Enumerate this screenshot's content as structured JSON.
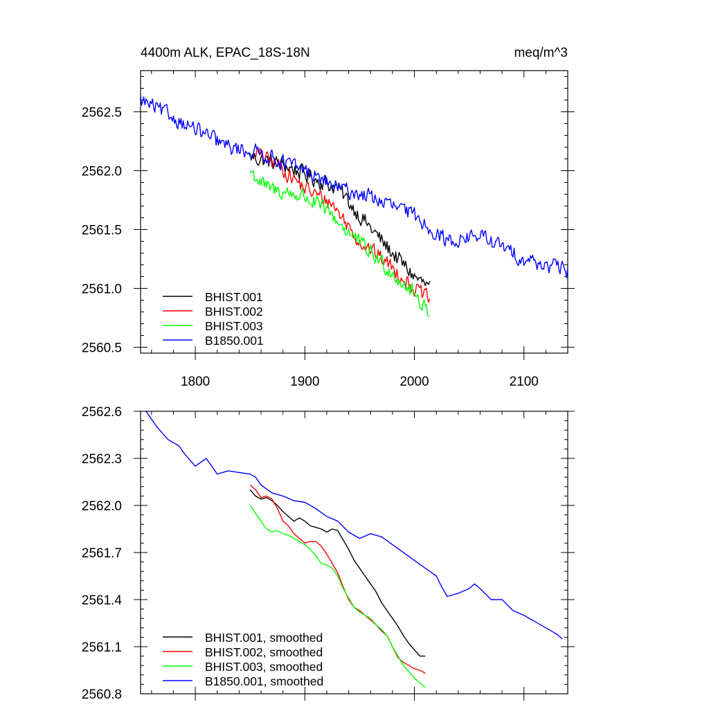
{
  "chart_data": [
    {
      "type": "line",
      "title": "4400m ALK, EPAC_18S-18N",
      "units": "meq/m^3",
      "xlabel": "",
      "ylabel": "",
      "xlim": [
        1750,
        2140
      ],
      "ylim": [
        2560.45,
        2562.85
      ],
      "xticks": [
        1800,
        1900,
        2000,
        2100
      ],
      "xtick_labels": [
        "1800",
        "1900",
        "2000",
        "2100"
      ],
      "yticks": [
        2560.5,
        2561.0,
        2561.5,
        2562.0,
        2562.5
      ],
      "ytick_labels": [
        "2560.5",
        "2561.0",
        "2561.5",
        "2562.0",
        "2562.5"
      ],
      "grid": false,
      "legend_position": "bottom-left",
      "series": [
        {
          "name": "BHIST.001",
          "color": "#000000",
          "x_start": 1850,
          "x_end": 2014,
          "noise": 0.065,
          "trend_x": [
            1850,
            1880,
            1910,
            1930,
            1950,
            1975,
            2000,
            2014
          ],
          "trend_y": [
            2562.12,
            2562.05,
            2561.93,
            2561.85,
            2561.62,
            2561.35,
            2561.1,
            2561.0
          ]
        },
        {
          "name": "BHIST.002",
          "color": "#ff0000",
          "x_start": 1855,
          "x_end": 2014,
          "noise": 0.06,
          "trend_x": [
            1855,
            1875,
            1900,
            1925,
            1950,
            1975,
            2000,
            2014
          ],
          "trend_y": [
            2562.15,
            2562.05,
            2561.85,
            2561.72,
            2561.4,
            2561.22,
            2561.0,
            2560.9
          ]
        },
        {
          "name": "BHIST.003",
          "color": "#00ff00",
          "x_start": 1850,
          "x_end": 2014,
          "noise": 0.065,
          "trend_x": [
            1850,
            1865,
            1900,
            1925,
            1950,
            1975,
            2000,
            2014
          ],
          "trend_y": [
            2562.0,
            2561.85,
            2561.78,
            2561.62,
            2561.38,
            2561.18,
            2560.95,
            2560.8
          ]
        },
        {
          "name": "B1850.001",
          "color": "#0000ff",
          "x_start": 1750,
          "x_end": 2140,
          "noise": 0.06,
          "trend_x": [
            1750,
            1800,
            1830,
            1860,
            1900,
            1930,
            1960,
            2000,
            2030,
            2060,
            2100,
            2140
          ],
          "trend_y": [
            2562.6,
            2562.35,
            2562.2,
            2562.15,
            2562.0,
            2561.85,
            2561.78,
            2561.62,
            2561.4,
            2561.45,
            2561.25,
            2561.15
          ]
        }
      ]
    },
    {
      "type": "line",
      "title": "",
      "xlabel": "",
      "ylabel": "",
      "xlim": [
        1750,
        2140
      ],
      "ylim": [
        2560.8,
        2562.6
      ],
      "xticks": [
        1800,
        1900,
        2000,
        2100
      ],
      "yticks": [
        2560.8,
        2561.1,
        2561.4,
        2561.7,
        2562.0,
        2562.3,
        2562.6
      ],
      "ytick_labels": [
        "2560.8",
        "2561.1",
        "2561.4",
        "2561.7",
        "2562.0",
        "2562.3",
        "2562.6"
      ],
      "grid": false,
      "legend_position": "bottom-left",
      "series": [
        {
          "name": "BHIST.001, smoothed",
          "color": "#000000",
          "x": [
            1850,
            1855,
            1860,
            1865,
            1870,
            1875,
            1880,
            1885,
            1890,
            1895,
            1900,
            1905,
            1910,
            1915,
            1920,
            1925,
            1930,
            1935,
            1940,
            1945,
            1950,
            1955,
            1960,
            1965,
            1970,
            1975,
            1980,
            1985,
            1990,
            1995,
            2000,
            2005,
            2010
          ],
          "y": [
            2562.1,
            2562.06,
            2562.04,
            2562.05,
            2562.03,
            2562.0,
            2561.96,
            2561.93,
            2561.9,
            2561.92,
            2561.9,
            2561.87,
            2561.86,
            2561.85,
            2561.83,
            2561.85,
            2561.84,
            2561.78,
            2561.72,
            2561.65,
            2561.6,
            2561.55,
            2561.5,
            2561.45,
            2561.38,
            2561.33,
            2561.28,
            2561.23,
            2561.17,
            2561.12,
            2561.08,
            2561.04,
            2561.04
          ]
        },
        {
          "name": "BHIST.002, smoothed",
          "color": "#ff0000",
          "x": [
            1850,
            1855,
            1860,
            1865,
            1870,
            1875,
            1880,
            1885,
            1890,
            1895,
            1900,
            1905,
            1910,
            1915,
            1920,
            1925,
            1930,
            1935,
            1940,
            1945,
            1950,
            1955,
            1960,
            1965,
            1970,
            1975,
            1980,
            1985,
            1990,
            1995,
            2000,
            2005,
            2010
          ],
          "y": [
            2562.13,
            2562.1,
            2562.05,
            2562.06,
            2562.04,
            2561.98,
            2561.9,
            2561.87,
            2561.82,
            2561.79,
            2561.76,
            2561.77,
            2561.77,
            2561.74,
            2561.69,
            2561.63,
            2561.57,
            2561.48,
            2561.4,
            2561.35,
            2561.33,
            2561.3,
            2561.27,
            2561.24,
            2561.2,
            2561.17,
            2561.1,
            2561.03,
            2561.0,
            2560.98,
            2560.96,
            2560.95,
            2560.93
          ]
        },
        {
          "name": "BHIST.003, smoothed",
          "color": "#00ff00",
          "x": [
            1850,
            1855,
            1860,
            1865,
            1870,
            1875,
            1880,
            1885,
            1890,
            1895,
            1900,
            1905,
            1910,
            1915,
            1920,
            1925,
            1930,
            1935,
            1940,
            1945,
            1950,
            1955,
            1960,
            1965,
            1970,
            1975,
            1980,
            1985,
            1990,
            1995,
            2000,
            2005,
            2010
          ],
          "y": [
            2562.0,
            2561.95,
            2561.9,
            2561.85,
            2561.83,
            2561.84,
            2561.82,
            2561.81,
            2561.79,
            2561.77,
            2561.75,
            2561.72,
            2561.68,
            2561.63,
            2561.62,
            2561.6,
            2561.55,
            2561.47,
            2561.41,
            2561.35,
            2561.32,
            2561.3,
            2561.28,
            2561.24,
            2561.21,
            2561.17,
            2561.1,
            2561.04,
            2560.98,
            2560.94,
            2560.9,
            2560.87,
            2560.84
          ]
        },
        {
          "name": "B1850.001, smoothed",
          "color": "#0000ff",
          "x": [
            1755,
            1765,
            1775,
            1785,
            1790,
            1800,
            1810,
            1820,
            1830,
            1840,
            1850,
            1855,
            1860,
            1870,
            1880,
            1890,
            1900,
            1910,
            1920,
            1930,
            1940,
            1950,
            1960,
            1970,
            1980,
            1990,
            2000,
            2010,
            2020,
            2025,
            2030,
            2040,
            2050,
            2055,
            2060,
            2070,
            2080,
            2090,
            2100,
            2110,
            2120,
            2130,
            2135
          ],
          "y": [
            2562.6,
            2562.5,
            2562.42,
            2562.38,
            2562.33,
            2562.25,
            2562.3,
            2562.2,
            2562.22,
            2562.21,
            2562.2,
            2562.18,
            2562.13,
            2562.08,
            2562.06,
            2562.03,
            2562.02,
            2561.98,
            2561.93,
            2561.9,
            2561.83,
            2561.79,
            2561.82,
            2561.8,
            2561.75,
            2561.7,
            2561.65,
            2561.6,
            2561.55,
            2561.48,
            2561.42,
            2561.44,
            2561.47,
            2561.5,
            2561.47,
            2561.4,
            2561.4,
            2561.33,
            2561.3,
            2561.26,
            2561.22,
            2561.18,
            2561.15
          ]
        }
      ]
    }
  ]
}
